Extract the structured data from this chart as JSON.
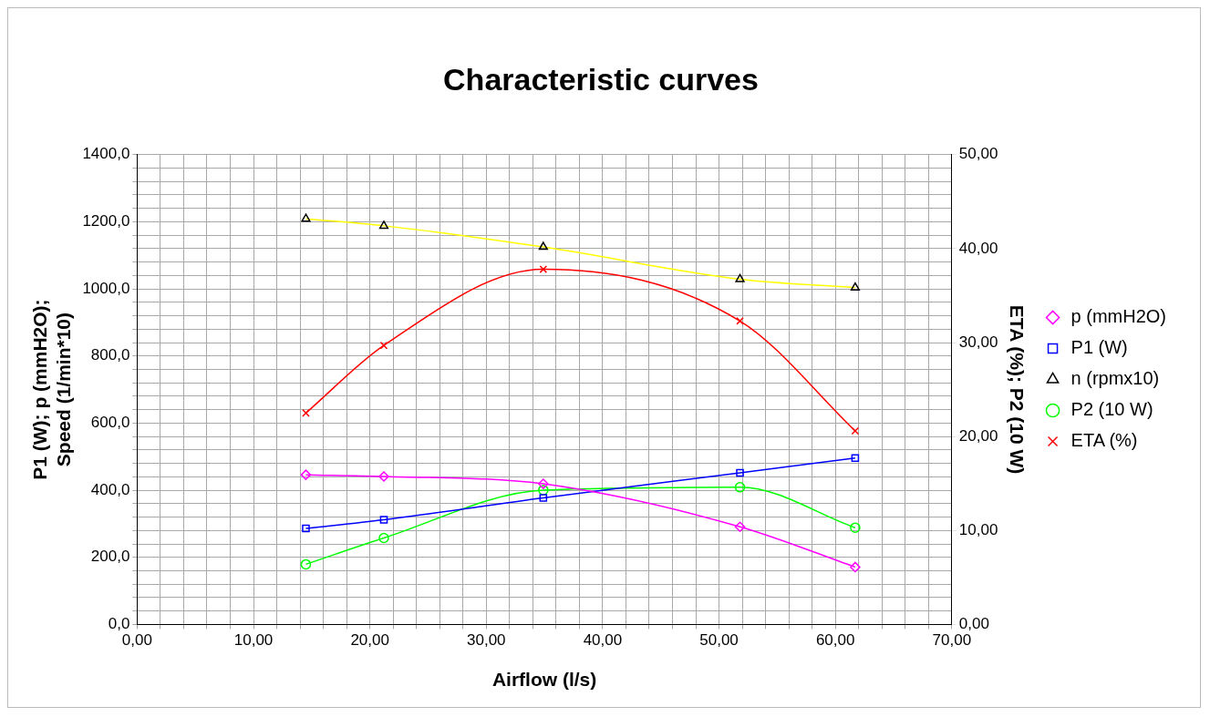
{
  "chart_data": {
    "type": "line",
    "title": "Characteristic curves",
    "xlabel": "Airflow (l/s)",
    "ylabel": "P1 (W); p (mmH2O); Speed (1/min*10)",
    "y2label": "ETA (%); P2 (10 W)",
    "x": [
      14.5,
      21.2,
      34.9,
      51.8,
      61.7
    ],
    "series": [
      {
        "name": "p (mmH2O)",
        "color": "#ff00ff",
        "marker": "diamond",
        "values": [
          446,
          441,
          419,
          291,
          171
        ]
      },
      {
        "name": "P1 (W)",
        "color": "#0000ff",
        "marker": "square",
        "values": [
          286,
          312,
          377,
          452,
          496
        ]
      },
      {
        "name": "n (rpmx10)",
        "color": "#ffff00",
        "marker": "triangle",
        "values": [
          1209,
          1188,
          1125,
          1029,
          1004
        ]
      },
      {
        "name": "P2 (10 W)",
        "color": "#00ff00",
        "marker": "circle",
        "axis": "y2",
        "values": [
          6.4,
          9.2,
          14.3,
          14.6,
          10.3
        ]
      },
      {
        "name": "ETA (%)",
        "color": "#ff0000",
        "marker": "cross",
        "axis": "y2",
        "values": [
          22.5,
          29.7,
          37.8,
          32.3,
          20.6
        ]
      }
    ],
    "xlim": [
      0,
      70
    ],
    "xticks": [
      {
        "value": 0,
        "label": "0,00"
      },
      {
        "value": 2,
        "label": null
      },
      {
        "value": 4,
        "label": null
      },
      {
        "value": 6,
        "label": null
      },
      {
        "value": 8,
        "label": null
      },
      {
        "value": 10,
        "label": "10,00"
      },
      {
        "value": 12,
        "label": null
      },
      {
        "value": 14,
        "label": null
      },
      {
        "value": 16,
        "label": null
      },
      {
        "value": 18,
        "label": null
      },
      {
        "value": 20,
        "label": "20,00"
      },
      {
        "value": 22,
        "label": null
      },
      {
        "value": 24,
        "label": null
      },
      {
        "value": 26,
        "label": null
      },
      {
        "value": 28,
        "label": null
      },
      {
        "value": 30,
        "label": "30,00"
      },
      {
        "value": 32,
        "label": null
      },
      {
        "value": 34,
        "label": null
      },
      {
        "value": 36,
        "label": null
      },
      {
        "value": 38,
        "label": null
      },
      {
        "value": 40,
        "label": "40,00"
      },
      {
        "value": 42,
        "label": null
      },
      {
        "value": 44,
        "label": null
      },
      {
        "value": 46,
        "label": null
      },
      {
        "value": 48,
        "label": null
      },
      {
        "value": 50,
        "label": "50,00"
      },
      {
        "value": 52,
        "label": null
      },
      {
        "value": 54,
        "label": null
      },
      {
        "value": 56,
        "label": null
      },
      {
        "value": 58,
        "label": null
      },
      {
        "value": 60,
        "label": "60,00"
      },
      {
        "value": 62,
        "label": null
      },
      {
        "value": 64,
        "label": null
      },
      {
        "value": 66,
        "label": null
      },
      {
        "value": 68,
        "label": null
      },
      {
        "value": 70,
        "label": "70,00"
      }
    ],
    "ylim": [
      0,
      1400
    ],
    "yticks": [
      {
        "value": 0,
        "label": "0,0"
      },
      {
        "value": 40,
        "label": null
      },
      {
        "value": 80,
        "label": null
      },
      {
        "value": 120,
        "label": null
      },
      {
        "value": 160,
        "label": null
      },
      {
        "value": 200,
        "label": "200,0"
      },
      {
        "value": 240,
        "label": null
      },
      {
        "value": 280,
        "label": null
      },
      {
        "value": 320,
        "label": null
      },
      {
        "value": 360,
        "label": null
      },
      {
        "value": 400,
        "label": "400,0"
      },
      {
        "value": 440,
        "label": null
      },
      {
        "value": 480,
        "label": null
      },
      {
        "value": 520,
        "label": null
      },
      {
        "value": 560,
        "label": null
      },
      {
        "value": 600,
        "label": "600,0"
      },
      {
        "value": 640,
        "label": null
      },
      {
        "value": 680,
        "label": null
      },
      {
        "value": 720,
        "label": null
      },
      {
        "value": 760,
        "label": null
      },
      {
        "value": 800,
        "label": "800,0"
      },
      {
        "value": 840,
        "label": null
      },
      {
        "value": 880,
        "label": null
      },
      {
        "value": 920,
        "label": null
      },
      {
        "value": 960,
        "label": null
      },
      {
        "value": 1000,
        "label": "1000,0"
      },
      {
        "value": 1040,
        "label": null
      },
      {
        "value": 1080,
        "label": null
      },
      {
        "value": 1120,
        "label": null
      },
      {
        "value": 1160,
        "label": null
      },
      {
        "value": 1200,
        "label": "1200,0"
      },
      {
        "value": 1240,
        "label": null
      },
      {
        "value": 1280,
        "label": null
      },
      {
        "value": 1320,
        "label": null
      },
      {
        "value": 1360,
        "label": null
      },
      {
        "value": 1400,
        "label": "1400,0"
      }
    ],
    "y2lim": [
      0,
      50
    ],
    "y2ticks": [
      {
        "value": 0,
        "label": "0,00"
      },
      {
        "value": 10,
        "label": "10,00"
      },
      {
        "value": 20,
        "label": "20,00"
      },
      {
        "value": 30,
        "label": "30,00"
      },
      {
        "value": 40,
        "label": "40,00"
      },
      {
        "value": 50,
        "label": "50,00"
      }
    ],
    "grid": true,
    "legend": "right",
    "line_style": "solid"
  }
}
